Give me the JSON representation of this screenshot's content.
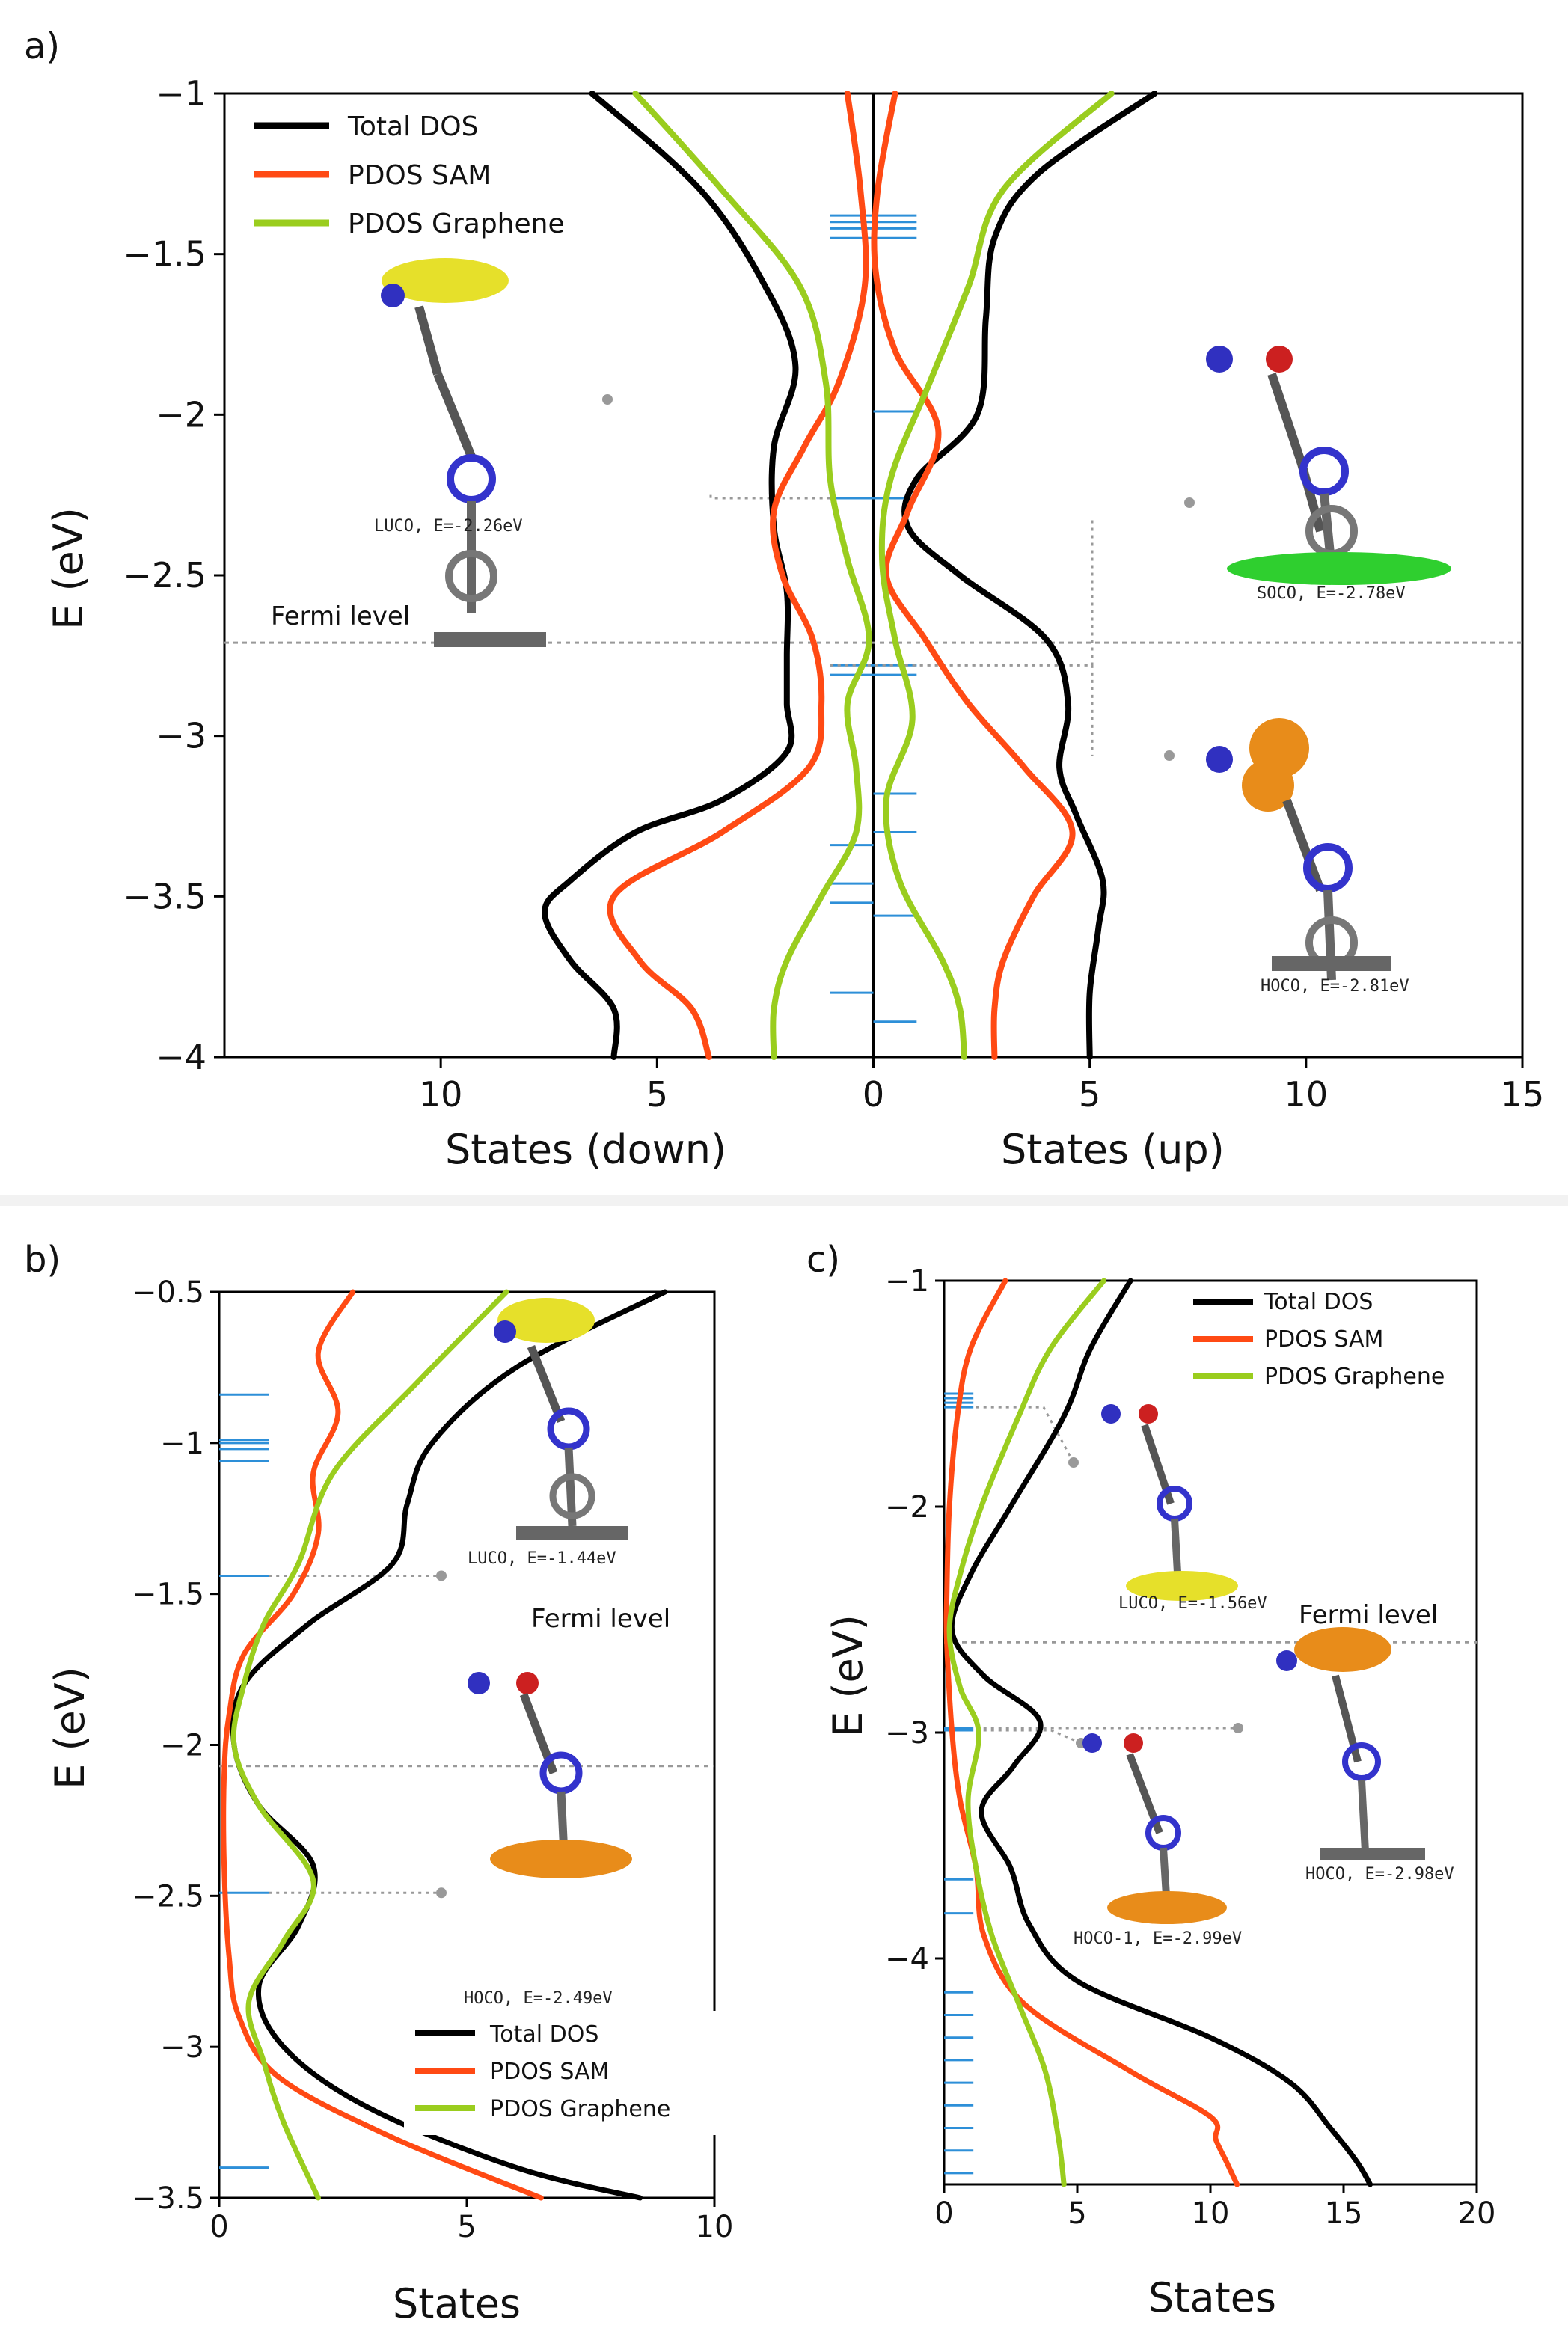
{
  "colors": {
    "total": "#000000",
    "sam": "#ff4a14",
    "graphene": "#9acd1e",
    "levels": "#2d8fd8",
    "guide": "#999999"
  },
  "panel_a": {
    "label": "a)",
    "xlabel_down": "States (down)",
    "xlabel_up": "States (up)",
    "ylabel": "E (eV)",
    "fermi_label": "Fermi level",
    "legend": [
      "Total DOS",
      "PDOS SAM",
      "PDOS Graphene"
    ],
    "annotations": [
      "LUCO, E=-2.26eV",
      "SOCO, E=-2.78eV",
      "HOCO, E=-2.81eV"
    ]
  },
  "panel_b": {
    "label": "b)",
    "xlabel": "States",
    "ylabel": "E (eV)",
    "fermi_label": "Fermi level",
    "legend": [
      "Total DOS",
      "PDOS SAM",
      "PDOS Graphene"
    ],
    "annotations": [
      "LUCO, E=-1.44eV",
      "HOCO, E=-2.49eV"
    ]
  },
  "panel_c": {
    "label": "c)",
    "xlabel": "States",
    "ylabel": "E (eV)",
    "fermi_label": "Fermi level",
    "legend": [
      "Total DOS",
      "PDOS SAM",
      "PDOS Graphene"
    ],
    "annotations": [
      "LUCO, E=-1.56eV",
      "HOCO, E=-2.98eV",
      "HOCO-1, E=-2.99eV"
    ]
  },
  "chart_data": [
    {
      "type": "line",
      "title": "a)",
      "xlabel": "States (down) | States (up)",
      "ylabel": "E (eV)",
      "xlim": [
        -15,
        15
      ],
      "ylim": [
        -4,
        -1
      ],
      "x_tick_values": [
        -10,
        -5,
        0,
        5,
        10,
        15
      ],
      "x_tick_labels": [
        "10",
        "5",
        "0",
        "5",
        "10",
        "15"
      ],
      "y_ticks": [
        -1,
        -1.5,
        -2,
        -2.5,
        -3,
        -3.5,
        -4
      ],
      "y_tick_labels": [
        "−1",
        "−1.5",
        "−2",
        "−2.5",
        "−3",
        "−3.5",
        "−4"
      ],
      "fermi_level": -2.71,
      "eigenlevels_up": [
        -1.38,
        -1.4,
        -1.42,
        -1.45,
        -1.99,
        -2.26,
        -2.78,
        -2.81,
        -3.18,
        -3.3,
        -3.56,
        -3.89
      ],
      "eigenlevels_down": [
        -1.38,
        -1.4,
        -1.42,
        -1.45,
        -2.26,
        -2.78,
        -2.81,
        -3.34,
        -3.46,
        -3.52,
        -3.8
      ],
      "series": [
        {
          "name": "Total DOS",
          "side": "down",
          "y": [
            -1,
            -1.3,
            -1.6,
            -1.85,
            -2.1,
            -2.35,
            -2.55,
            -2.75,
            -2.9,
            -3.05,
            -3.2,
            -3.3,
            -3.45,
            -3.55,
            -3.7,
            -3.85,
            -4
          ],
          "x": [
            6.5,
            4.0,
            2.5,
            1.8,
            2.3,
            2.3,
            2.0,
            2.0,
            2.0,
            2.0,
            3.5,
            5.5,
            7.0,
            7.6,
            7.0,
            6.0,
            6.0
          ]
        },
        {
          "name": "PDOS SAM",
          "side": "down",
          "y": [
            -1,
            -1.3,
            -1.6,
            -1.9,
            -2.1,
            -2.3,
            -2.5,
            -2.7,
            -2.9,
            -3.1,
            -3.3,
            -3.5,
            -3.7,
            -3.85,
            -4
          ],
          "x": [
            0.6,
            0.3,
            0.2,
            0.8,
            1.6,
            2.3,
            2.1,
            1.4,
            1.2,
            1.5,
            3.5,
            6.0,
            5.4,
            4.2,
            3.8
          ]
        },
        {
          "name": "PDOS Graphene",
          "side": "down",
          "y": [
            -1,
            -1.3,
            -1.6,
            -1.9,
            -2.2,
            -2.45,
            -2.7,
            -2.9,
            -3.1,
            -3.3,
            -3.5,
            -3.7,
            -3.85,
            -4
          ],
          "x": [
            5.5,
            3.5,
            1.7,
            1.1,
            1.0,
            0.6,
            0.1,
            0.6,
            0.4,
            0.4,
            1.2,
            2.0,
            2.3,
            2.3
          ]
        },
        {
          "name": "Total DOS",
          "side": "up",
          "y": [
            -1,
            -1.25,
            -1.45,
            -1.7,
            -2.0,
            -2.2,
            -2.35,
            -2.5,
            -2.7,
            -2.9,
            -3.1,
            -3.25,
            -3.45,
            -3.6,
            -3.8,
            -4
          ],
          "x": [
            6.5,
            3.8,
            2.8,
            2.6,
            2.4,
            1.0,
            0.8,
            2.0,
            4.0,
            4.5,
            4.3,
            4.7,
            5.3,
            5.2,
            5.0,
            5.0
          ]
        },
        {
          "name": "PDOS SAM",
          "side": "up",
          "y": [
            -1,
            -1.3,
            -1.55,
            -1.8,
            -2.05,
            -2.3,
            -2.5,
            -2.7,
            -2.9,
            -3.1,
            -3.3,
            -3.5,
            -3.7,
            -3.85,
            -4
          ],
          "x": [
            0.5,
            0.1,
            0.05,
            0.5,
            1.5,
            0.8,
            0.3,
            1.2,
            2.2,
            3.5,
            4.6,
            3.7,
            3.0,
            2.8,
            2.8
          ]
        },
        {
          "name": "PDOS Graphene",
          "side": "up",
          "y": [
            -1,
            -1.3,
            -1.6,
            -1.9,
            -2.2,
            -2.45,
            -2.7,
            -2.95,
            -3.2,
            -3.45,
            -3.7,
            -3.85,
            -4
          ],
          "x": [
            5.5,
            3.0,
            2.2,
            1.3,
            0.4,
            0.2,
            0.5,
            0.9,
            0.3,
            0.6,
            1.6,
            2.0,
            2.1
          ]
        }
      ]
    },
    {
      "type": "line",
      "title": "b)",
      "xlabel": "States",
      "ylabel": "E (eV)",
      "xlim": [
        0,
        10
      ],
      "ylim": [
        -3.5,
        -0.5
      ],
      "x_ticks": [
        0,
        5,
        10
      ],
      "y_ticks": [
        -0.5,
        -1,
        -1.5,
        -2,
        -2.5,
        -3,
        -3.5
      ],
      "y_tick_labels": [
        "−0.5",
        "−1",
        "−1.5",
        "−2",
        "−2.5",
        "−3",
        "−3.5"
      ],
      "fermi_level": -2.07,
      "eigenlevels": [
        -0.84,
        -0.99,
        -1.0,
        -1.02,
        -1.06,
        -1.44,
        -2.49,
        -3.4
      ],
      "series": [
        {
          "name": "Total DOS",
          "y": [
            -0.5,
            -0.75,
            -1.0,
            -1.2,
            -1.4,
            -1.6,
            -1.8,
            -2.0,
            -2.2,
            -2.4,
            -2.6,
            -2.8,
            -3.0,
            -3.2,
            -3.4,
            -3.5
          ],
          "x": [
            9.0,
            6.0,
            4.3,
            3.8,
            3.5,
            1.8,
            0.5,
            0.3,
            0.8,
            1.9,
            1.6,
            0.8,
            1.3,
            3.0,
            6.0,
            8.5
          ]
        },
        {
          "name": "PDOS SAM",
          "y": [
            -0.5,
            -0.7,
            -0.9,
            -1.1,
            -1.3,
            -1.5,
            -1.7,
            -1.9,
            -2.1,
            -2.4,
            -2.7,
            -2.9,
            -3.1,
            -3.3,
            -3.5
          ],
          "x": [
            2.7,
            2.0,
            2.4,
            1.9,
            2.0,
            1.5,
            0.5,
            0.2,
            0.1,
            0.1,
            0.2,
            0.4,
            1.2,
            3.5,
            6.5
          ]
        },
        {
          "name": "PDOS Graphene",
          "y": [
            -0.5,
            -0.8,
            -1.1,
            -1.4,
            -1.6,
            -1.8,
            -2.0,
            -2.2,
            -2.45,
            -2.65,
            -2.85,
            -3.05,
            -3.25,
            -3.5
          ],
          "x": [
            5.8,
            4.0,
            2.3,
            1.6,
            0.9,
            0.5,
            0.3,
            0.8,
            1.9,
            1.3,
            0.6,
            0.9,
            1.3,
            2.0
          ]
        }
      ]
    },
    {
      "type": "line",
      "title": "c)",
      "xlabel": "States",
      "ylabel": "E (eV)",
      "xlim": [
        0,
        20
      ],
      "ylim": [
        -5,
        -1
      ],
      "x_ticks": [
        0,
        5,
        10,
        15,
        20
      ],
      "y_ticks": [
        -1,
        -2,
        -3,
        -4
      ],
      "y_tick_labels": [
        "−1",
        "−2",
        "−3",
        "−4"
      ],
      "fermi_level": -2.6,
      "eigenlevels": [
        -1.5,
        -1.52,
        -1.54,
        -1.56,
        -2.98,
        -2.99,
        -3.65,
        -3.8,
        -4.15,
        -4.25,
        -4.35,
        -4.45,
        -4.55,
        -4.65,
        -4.75,
        -4.85,
        -4.95
      ],
      "series": [
        {
          "name": "Total DOS",
          "y": [
            -1,
            -1.3,
            -1.6,
            -2.0,
            -2.3,
            -2.55,
            -2.75,
            -2.95,
            -3.15,
            -3.35,
            -3.6,
            -3.85,
            -4.1,
            -4.35,
            -4.55,
            -4.75,
            -4.9,
            -5.0
          ],
          "x": [
            7.0,
            5.5,
            4.5,
            2.5,
            1.0,
            0.3,
            1.5,
            3.6,
            2.6,
            1.4,
            2.5,
            3.2,
            5.0,
            10.0,
            13.0,
            14.5,
            15.5,
            16.0
          ]
        },
        {
          "name": "PDOS SAM",
          "y": [
            -1,
            -1.3,
            -1.6,
            -2.0,
            -2.4,
            -2.6,
            -3.0,
            -3.3,
            -3.6,
            -3.9,
            -4.2,
            -4.5,
            -4.7,
            -4.8,
            -4.9,
            -5.0
          ],
          "x": [
            2.3,
            1.0,
            0.5,
            0.2,
            0.1,
            0.1,
            0.3,
            0.6,
            1.2,
            1.5,
            3.0,
            7.0,
            10.0,
            10.2,
            10.6,
            11.0
          ]
        },
        {
          "name": "PDOS Graphene",
          "y": [
            -1,
            -1.3,
            -1.6,
            -2.0,
            -2.3,
            -2.55,
            -2.8,
            -3.0,
            -3.3,
            -3.6,
            -3.9,
            -4.2,
            -4.5,
            -4.8,
            -5.0
          ],
          "x": [
            6.0,
            4.0,
            2.8,
            1.4,
            0.6,
            0.2,
            0.6,
            1.3,
            0.9,
            1.2,
            1.8,
            2.8,
            3.8,
            4.3,
            4.5
          ]
        }
      ]
    }
  ]
}
